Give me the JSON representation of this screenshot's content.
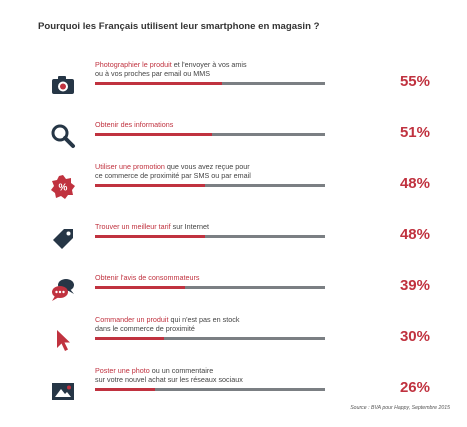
{
  "title": "Pourquoi les Français utilisent leur smartphone en magasin ?",
  "colors": {
    "accent": "#c0323f",
    "track": "#7b7f83",
    "icon": "#263646"
  },
  "chart_data": {
    "type": "bar",
    "orientation": "horizontal",
    "title": "Pourquoi les Français utilisent leur smartphone en magasin ?",
    "unit": "%",
    "xlim": [
      0,
      100
    ],
    "items": [
      {
        "highlight": "Photographier le produit",
        "text_rest_line1": " et l'envoyer à vos amis",
        "line2": "ou à vos proches par email ou MMS",
        "value": 55,
        "value_label": "55%",
        "icon": "camera-icon"
      },
      {
        "highlight": "Obtenir des informations",
        "text_rest_line1": "",
        "line2": "",
        "value": 51,
        "value_label": "51%",
        "icon": "magnifier-icon"
      },
      {
        "highlight": "Utiliser une promotion",
        "text_rest_line1": " que vous avez reçue pour",
        "line2": "ce commerce de proximité par SMS ou par email",
        "value": 48,
        "value_label": "48%",
        "icon": "promo-badge-icon"
      },
      {
        "highlight": "Trouver un meilleur tarif",
        "text_rest_line1": " sur Internet",
        "line2": "",
        "value": 48,
        "value_label": "48%",
        "icon": "price-tag-icon"
      },
      {
        "highlight": "Obtenir l'avis de consommateurs",
        "text_rest_line1": "",
        "line2": "",
        "value": 39,
        "value_label": "39%",
        "icon": "chat-bubbles-icon"
      },
      {
        "highlight": "Commander un produit",
        "text_rest_line1": " qui n'est pas en stock",
        "line2": "dans le commerce de proximité",
        "value": 30,
        "value_label": "30%",
        "icon": "cursor-icon"
      },
      {
        "highlight": "Poster une photo",
        "text_rest_line1": " ou un commentaire",
        "line2": "sur votre nouvel achat sur les réseaux sociaux",
        "value": 26,
        "value_label": "26%",
        "icon": "photo-icon"
      }
    ]
  },
  "source": "Source : BVA pour Happy, Septembre 2015"
}
